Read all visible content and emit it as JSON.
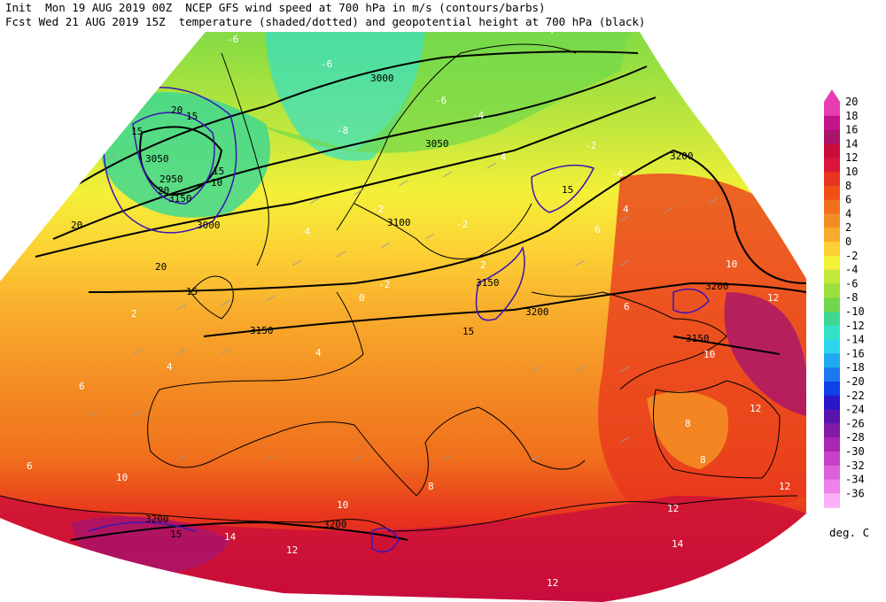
{
  "header": {
    "line1": "Init  Mon 19 AUG 2019 00Z  NCEP GFS wind speed at 700 hPa in m/s (contours/barbs)",
    "line2": "Fcst Wed 21 AUG 2019 15Z  temperature (shaded/dotted) and geopotential height at 700 hPa (black)"
  },
  "legend": {
    "unit": "deg. C",
    "levels": [
      "20",
      "18",
      "16",
      "14",
      "12",
      "10",
      "8",
      "6",
      "4",
      "2",
      "0",
      "-2",
      "-4",
      "-6",
      "-8",
      "-10",
      "-12",
      "-14",
      "-16",
      "-18",
      "-20",
      "-22",
      "-24",
      "-26",
      "-28",
      "-30",
      "-32",
      "-34",
      "-36"
    ],
    "colors": [
      "#e83cb0",
      "#c4148c",
      "#a8146c",
      "#c80c3c",
      "#dc143c",
      "#e8341c",
      "#f05014",
      "#f0701c",
      "#f48c24",
      "#f8ac2c",
      "#fcd034",
      "#f4f038",
      "#c4e83c",
      "#9ce040",
      "#70d84c",
      "#40d890",
      "#34e0c8",
      "#2cd4f0",
      "#20a8f0",
      "#1c78f0",
      "#1040e8",
      "#2c14c8",
      "#5814b0",
      "#8418a8",
      "#a828b4",
      "#c840c8",
      "#dc60dc",
      "#f080ec",
      "#fcb0f8"
    ]
  },
  "height_labels": [
    "3000",
    "3050",
    "3100",
    "3150",
    "3200",
    "3200",
    "3200",
    "3150",
    "3200",
    "3200",
    "3150",
    "3000",
    "3050",
    "2950",
    "3150"
  ],
  "wind_labels": [
    "20",
    "15",
    "20",
    "15",
    "20",
    "20",
    "15",
    "15",
    "15",
    "15",
    "15",
    "10"
  ],
  "temp_labels": [
    "-6",
    "-6",
    "-4",
    "-4",
    "-6",
    "-8",
    "-4",
    "-4",
    "-2",
    "-4",
    "-2",
    "-2",
    "0",
    "2",
    "2",
    "4",
    "4",
    "6",
    "6",
    "8",
    "8",
    "10",
    "10",
    "12",
    "12",
    "12",
    "14",
    "14",
    "12",
    "-2",
    "4",
    "6",
    "6",
    "8",
    "12",
    "10",
    "10",
    "12"
  ]
}
